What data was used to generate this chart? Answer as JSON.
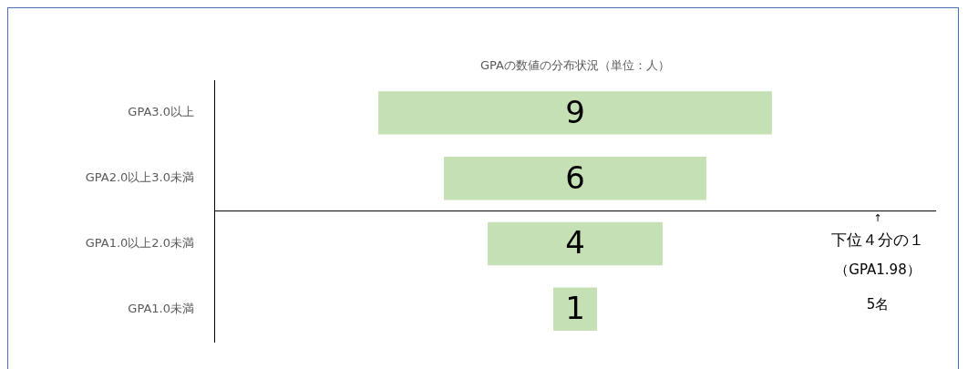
{
  "chart_data": {
    "type": "other",
    "title": "GPAの数値の分布状況（単位：人）",
    "categories": [
      "GPA3.0以上",
      "GPA2.0以上3.0未満",
      "GPA1.0以上2.0未満",
      "GPA1.0未満"
    ],
    "values": [
      9,
      6,
      4,
      1
    ],
    "color": "#c5e0b4",
    "data_labels": true,
    "annotations": [
      "↑",
      {
        "text": "下位４分の１",
        "y": "GPA1.0以上2.0未満"
      },
      "（GPA1.98）",
      "5名"
    ]
  }
}
